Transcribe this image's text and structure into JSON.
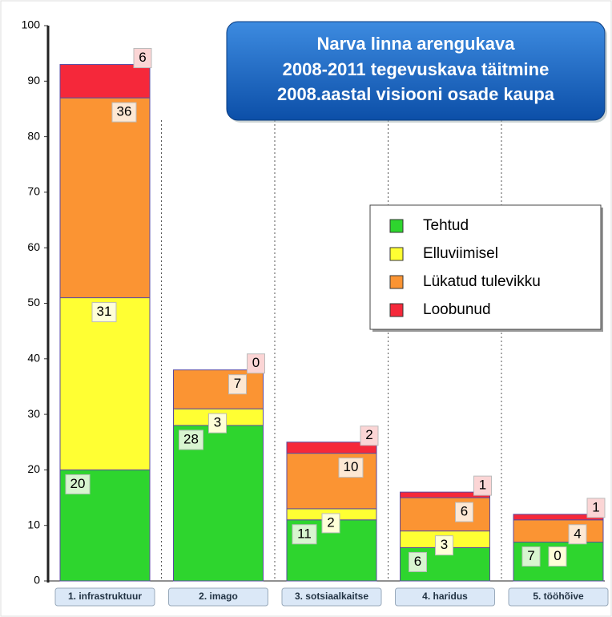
{
  "chart_data": {
    "type": "stacked_bar",
    "title": [
      "Narva linna arengukava",
      "2008-2011 tegevuskava täitmine",
      "2008.aastal visiooni osade kaupa"
    ],
    "categories": [
      "1. infrastruktuur",
      "2. imago",
      "3. sotsiaalkaitse",
      "4. haridus",
      "5. tööhõive"
    ],
    "series": [
      {
        "name": "Tehtud",
        "color": "#2ed52e",
        "values": [
          20,
          28,
          11,
          6,
          7
        ]
      },
      {
        "name": "Elluviimisel",
        "color": "#ffff33",
        "values": [
          31,
          3,
          2,
          3,
          0
        ]
      },
      {
        "name": "Lükatud tulevikku",
        "color": "#fb9433",
        "values": [
          36,
          7,
          10,
          6,
          4
        ]
      },
      {
        "name": "Loobunud",
        "color": "#f5283a",
        "values": [
          6,
          0,
          2,
          1,
          1
        ]
      }
    ],
    "ylim": [
      0,
      100
    ],
    "yticks": [
      0,
      10,
      20,
      30,
      40,
      50,
      60,
      70,
      80,
      90,
      100
    ]
  }
}
